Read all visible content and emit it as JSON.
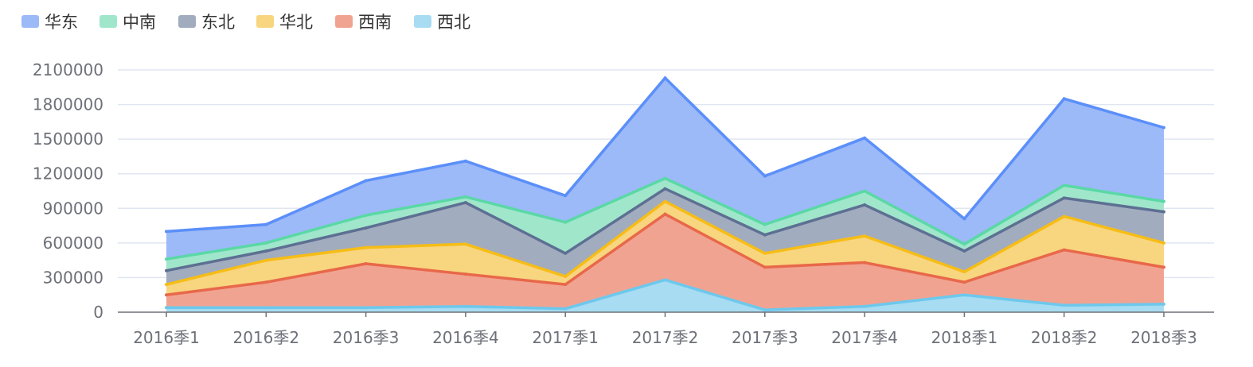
{
  "chart_data": {
    "type": "area",
    "stacked": true,
    "categories": [
      "2016季1",
      "2016季2",
      "2016季3",
      "2016季4",
      "2017季1",
      "2017季2",
      "2017季3",
      "2017季4",
      "2018季1",
      "2018季2",
      "2018季3"
    ],
    "ylim": [
      0,
      2100000
    ],
    "yticks": [
      0,
      300000,
      600000,
      900000,
      1200000,
      1500000,
      1800000,
      2100000
    ],
    "grid": true,
    "legend_position": "top-left",
    "series": [
      {
        "name": "西北",
        "color": "#73c0de",
        "values": [
          40000,
          40000,
          40000,
          50000,
          30000,
          280000,
          20000,
          50000,
          150000,
          60000,
          70000
        ]
      },
      {
        "name": "西南",
        "color": "#ee6666",
        "values": [
          110000,
          220000,
          380000,
          280000,
          210000,
          570000,
          370000,
          380000,
          110000,
          480000,
          320000
        ]
      },
      {
        "name": "华北",
        "color": "#fac858",
        "values": [
          90000,
          190000,
          140000,
          260000,
          70000,
          110000,
          120000,
          230000,
          90000,
          290000,
          210000
        ]
      },
      {
        "name": "东北",
        "color": "#5470c6",
        "values": [
          120000,
          80000,
          170000,
          360000,
          200000,
          110000,
          160000,
          270000,
          180000,
          160000,
          270000
        ]
      },
      {
        "name": "中南",
        "color": "#3ba272",
        "values": [
          100000,
          70000,
          110000,
          50000,
          270000,
          90000,
          90000,
          120000,
          60000,
          110000,
          90000
        ]
      },
      {
        "name": "华东",
        "color": "#5470c6",
        "values": [
          240000,
          160000,
          300000,
          310000,
          230000,
          870000,
          420000,
          460000,
          220000,
          750000,
          640000
        ]
      }
    ],
    "colors": {
      "华东": {
        "line": "#5b8ff9",
        "fill": "#9cb9f8"
      },
      "中南": {
        "line": "#5ad8a6",
        "fill": "#a0e6cb"
      },
      "东北": {
        "line": "#5d7092",
        "fill": "#a2acbf"
      },
      "华北": {
        "line": "#f6bd16",
        "fill": "#f8d57f"
      },
      "西南": {
        "line": "#e8684a",
        "fill": "#f1a392"
      },
      "西北": {
        "line": "#6dc8ec",
        "fill": "#a7dcf2"
      }
    },
    "legend_order": [
      "华东",
      "中南",
      "东北",
      "华北",
      "西南",
      "西北"
    ]
  }
}
